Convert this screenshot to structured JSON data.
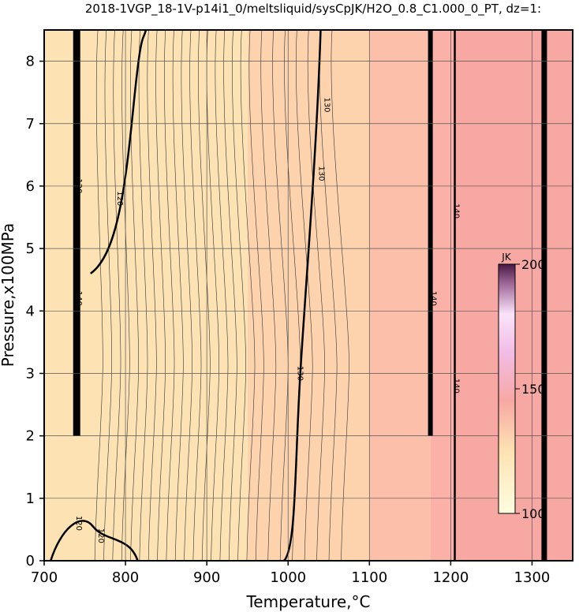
{
  "chart_data": {
    "type": "heatmap",
    "title": "2018-1VGP_18-1V-p14i1_0/meltsliquid/sysCpJK/H2O_0.8_C1.000_0_PT, dz=1:",
    "xlabel": "Temperature,°C",
    "ylabel": "Pressure,x100MPa",
    "xlim": [
      700,
      1350
    ],
    "ylim": [
      0,
      8.5
    ],
    "x_ticks": [
      700,
      800,
      900,
      1000,
      1100,
      1200,
      1300
    ],
    "y_ticks": [
      0,
      1,
      2,
      3,
      4,
      5,
      6,
      7,
      8
    ],
    "grid": true,
    "regions": [
      {
        "x_from": 700,
        "x_to": 950,
        "value": 118,
        "color": "#fde3b3"
      },
      {
        "x_from": 950,
        "x_to": 1100,
        "value": 126,
        "color": "#fdd3ae"
      },
      {
        "x_from": 1100,
        "x_to": 1175,
        "value": 133,
        "color": "#fcbfa9"
      },
      {
        "x_from": 1175,
        "x_to": 1205,
        "value": 138,
        "color": "#fbb1a8"
      },
      {
        "x_from": 1205,
        "x_to": 1350,
        "value": 142,
        "color": "#f8a8a3"
      }
    ],
    "contour_labels": [
      {
        "text": "120",
        "x": 740,
        "y": 6.0
      },
      {
        "text": "120",
        "x": 790,
        "y": 5.8
      },
      {
        "text": "120",
        "x": 740,
        "y": 0.6
      },
      {
        "text": "120",
        "x": 767,
        "y": 0.4
      },
      {
        "text": "130",
        "x": 1012,
        "y": 3.0
      },
      {
        "text": "130",
        "x": 1038,
        "y": 6.2
      },
      {
        "text": "130",
        "x": 1045,
        "y": 7.3
      },
      {
        "text": "140",
        "x": 740,
        "y": 4.2
      },
      {
        "text": "140",
        "x": 1176,
        "y": 4.2
      },
      {
        "text": "140",
        "x": 1204,
        "y": 5.6
      },
      {
        "text": "140",
        "x": 1204,
        "y": 2.8
      }
    ],
    "colorbar": {
      "unit": "JK",
      "min": 100,
      "max": 200,
      "ticks": [
        200,
        150,
        100
      ],
      "colors": [
        "#fffde0",
        "#fde3b3",
        "#f8a8a3",
        "#f1bde6",
        "#fbe3fa",
        "#a06a9a",
        "#4a1a46"
      ]
    }
  }
}
